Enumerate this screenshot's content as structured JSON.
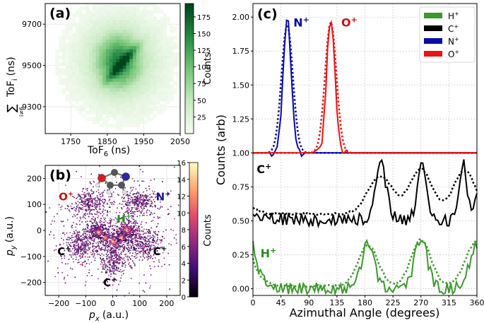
{
  "chart_data": [
    {
      "panel": "(a)",
      "type": "heatmap",
      "xlabel": "ToF",
      "xlabel_sub": "6",
      "xlabel_unit": "(ns)",
      "ylabel_main": "ToF",
      "ylabel_sub": "i",
      "ylabel_sum": "∑",
      "ylabel_sum_index": "i≠6",
      "ylabel_unit": "(ns)",
      "xlim": [
        1680,
        2050
      ],
      "ylim": [
        9170,
        9800
      ],
      "xticks": [
        "1750",
        "1850",
        "1950",
        "2050"
      ],
      "xtick_values": [
        1750,
        1850,
        1950,
        2050
      ],
      "yticks": [
        "9300",
        "9500",
        "9700"
      ],
      "ytick_values": [
        9300,
        9500,
        9700
      ],
      "colorbar": {
        "label": "Counts",
        "range": [
          0,
          195
        ],
        "ticks": [
          "25",
          "50",
          "75",
          "100",
          "125",
          "150",
          "175"
        ],
        "tick_values": [
          25,
          50,
          75,
          100,
          125,
          150,
          175
        ]
      },
      "cmap_colors": [
        "#f5fbf2",
        "#c7e9c0",
        "#74c476",
        "#238b45",
        "#00441b"
      ],
      "blobs": [
        {
          "x": 1885,
          "y": 9520,
          "sx": 70,
          "sy": 130,
          "amp": 0.35
        },
        {
          "x": 1880,
          "y": 9520,
          "sx": 35,
          "sy": 80,
          "amp": 0.45
        },
        {
          "x": 1890,
          "y": 9510,
          "sx": 12,
          "sy": 20,
          "amp": 0.5,
          "ridge": true
        }
      ]
    },
    {
      "panel": "(b)",
      "type": "scatter",
      "xlabel": "p",
      "xlabel_sub": "x",
      "xlabel_unit": "(a.u.)",
      "ylabel": "p",
      "ylabel_sub": "y",
      "ylabel_unit": "(a.u.)",
      "xlim": [
        -250,
        250
      ],
      "ylim": [
        -250,
        250
      ],
      "xticks": [
        "−200",
        "−100",
        "0",
        "100",
        "200"
      ],
      "xtick_values": [
        -200,
        -100,
        0,
        100,
        200
      ],
      "yticks": [
        "−200",
        "−100",
        "0",
        "100",
        "200"
      ],
      "ytick_values": [
        -200,
        -100,
        0,
        100,
        200
      ],
      "colorbar": {
        "label": "Counts",
        "range": [
          0,
          16
        ],
        "ticks": [
          "0",
          "2",
          "4",
          "6",
          "8",
          "10",
          "12",
          "14",
          "16"
        ],
        "tick_values": [
          0,
          2,
          4,
          6,
          8,
          10,
          12,
          14,
          16
        ]
      },
      "cmap_colors": [
        "#000004",
        "#3b0f70",
        "#8c2981",
        "#de4968",
        "#fe9f6d",
        "#fcfdbf"
      ],
      "ion_labels": [
        {
          "text": "O",
          "sup": "+",
          "x": -200,
          "y": 115,
          "color": "#cc1111"
        },
        {
          "text": "N",
          "sup": "+",
          "x": 160,
          "y": 115,
          "color": "#1a1a8c"
        },
        {
          "text": "H",
          "sup": "+",
          "x": 15,
          "y": 30,
          "color": "#2e8b22"
        },
        {
          "text": "C",
          "sup": "+",
          "x": -205,
          "y": -95,
          "color": "#000000"
        },
        {
          "text": "C",
          "sup": "+",
          "x": 150,
          "y": -95,
          "color": "#000000"
        },
        {
          "text": "C",
          "sup": "+",
          "x": -35,
          "y": -215,
          "color": "#000000"
        }
      ],
      "clusters": [
        {
          "x": -95,
          "y": 110,
          "sx": 35,
          "sy": 25,
          "n": 260
        },
        {
          "x": 95,
          "y": 110,
          "sx": 35,
          "sy": 25,
          "n": 260
        },
        {
          "x": -120,
          "y": -55,
          "sx": 30,
          "sy": 30,
          "n": 260
        },
        {
          "x": 120,
          "y": -55,
          "sx": 30,
          "sy": 30,
          "n": 260
        },
        {
          "x": 0,
          "y": -115,
          "sx": 25,
          "sy": 35,
          "n": 260
        },
        {
          "x": -60,
          "y": 0,
          "sx": 20,
          "sy": 20,
          "n": 230
        },
        {
          "x": 55,
          "y": 0,
          "sx": 20,
          "sy": 20,
          "n": 230
        },
        {
          "x": 0,
          "y": -35,
          "sx": 35,
          "sy": 25,
          "n": 260
        },
        {
          "x": 0,
          "y": 0,
          "sx": 120,
          "sy": 110,
          "n": 700
        }
      ],
      "hotspots": [
        {
          "x": -55,
          "y": -5,
          "r": 10
        },
        {
          "x": 50,
          "y": 5,
          "r": 10
        },
        {
          "x": 0,
          "y": -40,
          "r": 9
        },
        {
          "x": 30,
          "y": -25,
          "r": 7
        },
        {
          "x": -30,
          "y": -25,
          "r": 7
        }
      ]
    },
    {
      "panel": "(c)",
      "type": "line",
      "xlabel": "Azimuthal Angle (degrees)",
      "ylabel": "Counts (arb)",
      "xlim": [
        0,
        360
      ],
      "ylim": [
        -0.05,
        2.1
      ],
      "xticks": [
        "0",
        "45",
        "90",
        "135",
        "180",
        "225",
        "270",
        "315",
        "360"
      ],
      "xtick_values": [
        0,
        45,
        90,
        135,
        180,
        225,
        270,
        315,
        360
      ],
      "yticks_left": [
        "0.00",
        "0.25",
        "0.50",
        "0.75",
        "1.00",
        "1.25",
        "1.50",
        "1.75",
        "2.00"
      ],
      "ytick_values": [
        0,
        0.25,
        0.5,
        0.75,
        1.0,
        1.25,
        1.5,
        1.75,
        2.0
      ],
      "grid": true,
      "legend_position": "top-right",
      "legend": [
        {
          "label": "H",
          "sup": "+",
          "color": "#3a9a2a"
        },
        {
          "label": "C",
          "sup": "+",
          "color": "#000000"
        },
        {
          "label": "N",
          "sup": "+",
          "color": "#0a0aa8"
        },
        {
          "label": "O",
          "sup": "+",
          "color": "#ee1111"
        }
      ],
      "annotations": [
        {
          "text": "N",
          "sup": "+",
          "x": 65,
          "y": 1.93,
          "color": "#0a0aa8"
        },
        {
          "text": "O",
          "sup": "+",
          "x": 142,
          "y": 1.93,
          "color": "#cc1111"
        },
        {
          "text": "C",
          "sup": "+",
          "x": 6,
          "y": 0.85,
          "color": "#000000"
        },
        {
          "text": "H",
          "sup": "+",
          "x": 12,
          "y": 0.23,
          "color": "#2e8b22"
        }
      ],
      "series": [
        {
          "name": "N+",
          "color": "#0a0aa8",
          "model": "peak",
          "base": 1.0,
          "peaks": [
            {
              "mu": 55,
              "sigma": 6.5,
              "amp": 1.0
            }
          ],
          "noise": 0.03,
          "dotted_sigma": 9,
          "dotted_amp": 0.95
        },
        {
          "name": "O+",
          "color": "#ee1111",
          "model": "peak",
          "base": 1.0,
          "peaks": [
            {
              "mu": 125,
              "sigma": 6.5,
              "amp": 1.0
            }
          ],
          "noise": 0.03,
          "dotted_sigma": 9,
          "dotted_amp": 0.97
        },
        {
          "name": "C+",
          "color": "#000000",
          "model": "multi",
          "base": 0.51,
          "start": 0.59,
          "peaks": [
            {
              "mu": 205,
              "sigma": 9,
              "amp": 0.4
            },
            {
              "mu": 272,
              "sigma": 7,
              "amp": 0.39
            },
            {
              "mu": 338,
              "sigma": 6,
              "amp": 0.41
            },
            {
              "mu": 360,
              "sigma": 5,
              "amp": 0.2
            }
          ],
          "noise": 0.05,
          "dotted_base": 0.55,
          "dotted_peaks": [
            {
              "mu": 205,
              "sigma": 20,
              "amp": 0.28
            },
            {
              "mu": 270,
              "sigma": 18,
              "amp": 0.33
            },
            {
              "mu": 340,
              "sigma": 18,
              "amp": 0.32
            }
          ]
        },
        {
          "name": "H+",
          "color": "#3a9a2a",
          "model": "multi",
          "base": 0.0,
          "start": 0.33,
          "peaks": [
            {
              "mu": 185,
              "sigma": 10,
              "amp": 0.33
            },
            {
              "mu": 270,
              "sigma": 10,
              "amp": 0.38
            },
            {
              "mu": 360,
              "sigma": 12,
              "amp": 0.32
            }
          ],
          "noise": 0.045,
          "dotted_base": 0.02,
          "dotted_peaks": [
            {
              "mu": 185,
              "sigma": 16,
              "amp": 0.3
            },
            {
              "mu": 270,
              "sigma": 16,
              "amp": 0.34
            },
            {
              "mu": 360,
              "sigma": 18,
              "amp": 0.33
            }
          ]
        }
      ]
    }
  ]
}
